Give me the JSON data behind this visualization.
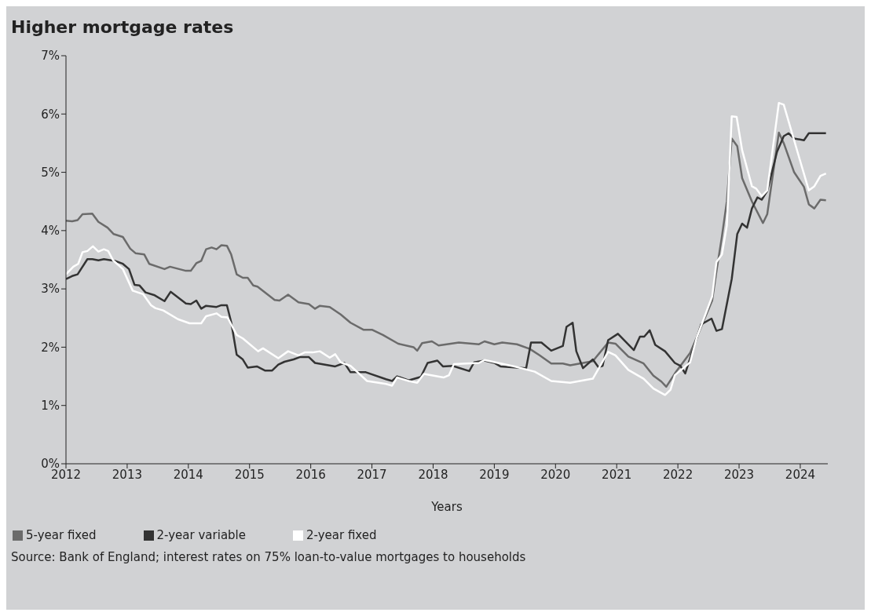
{
  "chart_data": {
    "type": "line",
    "title": "Higher mortgage rates",
    "xlabel": "Years",
    "xlim": [
      2012,
      2024.45
    ],
    "xticks": [
      2012,
      2013,
      2014,
      2015,
      2016,
      2017,
      2018,
      2019,
      2020,
      2021,
      2022,
      2023,
      2024
    ],
    "ylim": [
      0,
      7
    ],
    "yticks": [
      {
        "value": 0,
        "label": "0%"
      },
      {
        "value": 1,
        "label": "1%"
      },
      {
        "value": 2,
        "label": "2%"
      },
      {
        "value": 3,
        "label": "3%"
      },
      {
        "value": 4,
        "label": "4%"
      },
      {
        "value": 5,
        "label": "5%"
      },
      {
        "value": 6,
        "label": "6%"
      },
      {
        "value": 7,
        "label": "7%"
      }
    ],
    "grid": false,
    "legend": "bottom left",
    "marker": "none",
    "line_style": "solid",
    "annotations": [
      "Source: Bank of England; interest rates on 75% loan-to-value mortgages to households"
    ],
    "series": [
      {
        "name": "5-year fixed",
        "color": "#6b6b6b",
        "x": [
          2012.0,
          2012.1,
          2012.19,
          2012.27,
          2012.43,
          2012.53,
          2012.68,
          2012.78,
          2012.93,
          2013.05,
          2013.14,
          2013.28,
          2013.36,
          2013.61,
          2013.7,
          2013.96,
          2014.04,
          2014.13,
          2014.21,
          2014.29,
          2014.38,
          2014.46,
          2014.54,
          2014.63,
          2014.7,
          2014.79,
          2014.89,
          2014.97,
          2015.06,
          2015.13,
          2015.41,
          2015.49,
          2015.63,
          2015.8,
          2015.97,
          2016.07,
          2016.15,
          2016.31,
          2016.49,
          2016.65,
          2016.86,
          2017.0,
          2017.18,
          2017.43,
          2017.68,
          2017.74,
          2017.82,
          2017.98,
          2018.09,
          2018.42,
          2018.75,
          2018.84,
          2019.0,
          2019.13,
          2019.37,
          2019.58,
          2019.74,
          2019.93,
          2020.12,
          2020.24,
          2020.61,
          2020.86,
          2020.98,
          2021.19,
          2021.44,
          2021.6,
          2021.73,
          2021.81,
          2021.97,
          2022.2,
          2022.31,
          2022.56,
          2022.63,
          2022.72,
          2022.8,
          2022.88,
          2022.97,
          2023.05,
          2023.21,
          2023.39,
          2023.46,
          2023.65,
          2023.73,
          2023.9,
          2024.06,
          2024.14,
          2024.23,
          2024.33,
          2024.42
        ],
        "values": [
          4.17,
          4.16,
          4.18,
          4.28,
          4.29,
          4.15,
          4.05,
          3.94,
          3.89,
          3.69,
          3.61,
          3.59,
          3.43,
          3.34,
          3.38,
          3.31,
          3.31,
          3.44,
          3.48,
          3.68,
          3.71,
          3.68,
          3.75,
          3.74,
          3.59,
          3.25,
          3.19,
          3.19,
          3.06,
          3.04,
          2.81,
          2.8,
          2.9,
          2.77,
          2.74,
          2.66,
          2.71,
          2.69,
          2.56,
          2.42,
          2.3,
          2.3,
          2.21,
          2.06,
          2.0,
          1.94,
          2.07,
          2.1,
          2.03,
          2.08,
          2.05,
          2.1,
          2.05,
          2.08,
          2.05,
          1.97,
          1.86,
          1.72,
          1.72,
          1.69,
          1.76,
          2.08,
          2.06,
          1.84,
          1.72,
          1.51,
          1.41,
          1.32,
          1.58,
          1.9,
          2.17,
          2.8,
          3.3,
          3.9,
          4.5,
          5.58,
          5.45,
          4.9,
          4.5,
          4.13,
          4.28,
          5.68,
          5.5,
          5.0,
          4.75,
          4.45,
          4.38,
          4.53,
          4.52
        ]
      },
      {
        "name": "2-year variable",
        "color": "#333333",
        "x": [
          2012.0,
          2012.1,
          2012.19,
          2012.35,
          2012.43,
          2012.53,
          2012.62,
          2012.8,
          2012.93,
          2013.03,
          2013.12,
          2013.2,
          2013.3,
          2013.45,
          2013.61,
          2013.71,
          2013.96,
          2014.04,
          2014.13,
          2014.21,
          2014.29,
          2014.46,
          2014.54,
          2014.63,
          2014.7,
          2014.79,
          2014.89,
          2014.97,
          2015.12,
          2015.25,
          2015.37,
          2015.47,
          2015.57,
          2015.72,
          2015.82,
          2015.97,
          2016.07,
          2016.4,
          2016.55,
          2016.65,
          2016.9,
          2017.23,
          2017.33,
          2017.41,
          2017.6,
          2017.8,
          2017.91,
          2018.07,
          2018.16,
          2018.32,
          2018.59,
          2018.67,
          2018.84,
          2019.0,
          2019.1,
          2019.52,
          2019.6,
          2019.77,
          2019.93,
          2020.12,
          2020.18,
          2020.28,
          2020.34,
          2020.45,
          2020.61,
          2020.7,
          2020.77,
          2020.86,
          2021.02,
          2021.28,
          2021.38,
          2021.45,
          2021.54,
          2021.63,
          2021.79,
          2021.95,
          2022.04,
          2022.12,
          2022.38,
          2022.55,
          2022.63,
          2022.72,
          2022.88,
          2022.97,
          2023.05,
          2023.13,
          2023.21,
          2023.3,
          2023.37,
          2023.46,
          2023.62,
          2023.73,
          2023.81,
          2023.9,
          2024.06,
          2024.14,
          2024.42
        ],
        "values": [
          3.17,
          3.22,
          3.25,
          3.51,
          3.51,
          3.49,
          3.51,
          3.48,
          3.43,
          3.34,
          3.07,
          3.06,
          2.94,
          2.89,
          2.79,
          2.95,
          2.75,
          2.74,
          2.8,
          2.66,
          2.71,
          2.69,
          2.72,
          2.72,
          2.43,
          1.87,
          1.79,
          1.65,
          1.67,
          1.6,
          1.6,
          1.7,
          1.75,
          1.79,
          1.83,
          1.83,
          1.73,
          1.67,
          1.73,
          1.57,
          1.57,
          1.45,
          1.42,
          1.5,
          1.43,
          1.49,
          1.73,
          1.77,
          1.67,
          1.68,
          1.59,
          1.74,
          1.77,
          1.73,
          1.67,
          1.64,
          2.08,
          2.08,
          1.94,
          2.02,
          2.35,
          2.42,
          1.93,
          1.64,
          1.79,
          1.66,
          1.68,
          2.12,
          2.23,
          1.95,
          2.18,
          2.18,
          2.29,
          2.04,
          1.93,
          1.73,
          1.68,
          1.55,
          2.39,
          2.49,
          2.28,
          2.31,
          3.17,
          3.94,
          4.12,
          4.05,
          4.38,
          4.57,
          4.53,
          4.68,
          5.35,
          5.62,
          5.67,
          5.58,
          5.55,
          5.67,
          5.67
        ]
      },
      {
        "name": "2-year fixed",
        "color": "#ffffff",
        "x": [
          2012.0,
          2012.12,
          2012.2,
          2012.27,
          2012.35,
          2012.44,
          2012.53,
          2012.62,
          2012.69,
          2012.77,
          2012.93,
          2013.09,
          2013.26,
          2013.39,
          2013.46,
          2013.59,
          2013.83,
          2014.02,
          2014.21,
          2014.29,
          2014.46,
          2014.54,
          2014.64,
          2014.79,
          2014.89,
          2015.14,
          2015.22,
          2015.47,
          2015.63,
          2015.8,
          2015.9,
          2016.03,
          2016.15,
          2016.31,
          2016.4,
          2016.49,
          2016.65,
          2016.92,
          2017.23,
          2017.33,
          2017.41,
          2017.6,
          2017.74,
          2017.85,
          2018.17,
          2018.26,
          2018.34,
          2018.75,
          2018.84,
          2019.33,
          2019.66,
          2019.93,
          2020.24,
          2020.61,
          2020.86,
          2020.98,
          2021.19,
          2021.44,
          2021.6,
          2021.79,
          2021.88,
          2021.95,
          2022.2,
          2022.31,
          2022.56,
          2022.63,
          2022.72,
          2022.8,
          2022.88,
          2022.96,
          2023.05,
          2023.21,
          2023.28,
          2023.37,
          2023.46,
          2023.65,
          2023.73,
          2023.98,
          2024.14,
          2024.23,
          2024.33,
          2024.42
        ],
        "values": [
          3.25,
          3.38,
          3.43,
          3.63,
          3.65,
          3.73,
          3.64,
          3.68,
          3.65,
          3.49,
          3.34,
          2.97,
          2.91,
          2.72,
          2.67,
          2.63,
          2.48,
          2.41,
          2.41,
          2.53,
          2.58,
          2.52,
          2.51,
          2.21,
          2.15,
          1.93,
          1.98,
          1.81,
          1.93,
          1.86,
          1.91,
          1.91,
          1.93,
          1.82,
          1.88,
          1.74,
          1.68,
          1.42,
          1.37,
          1.34,
          1.48,
          1.42,
          1.39,
          1.54,
          1.48,
          1.52,
          1.71,
          1.73,
          1.78,
          1.67,
          1.58,
          1.42,
          1.39,
          1.46,
          1.92,
          1.86,
          1.61,
          1.46,
          1.29,
          1.18,
          1.27,
          1.52,
          1.74,
          2.17,
          2.87,
          3.46,
          3.59,
          4.09,
          5.96,
          5.95,
          5.38,
          4.76,
          4.72,
          4.59,
          4.69,
          6.19,
          6.16,
          5.26,
          4.69,
          4.76,
          4.94,
          4.98
        ]
      }
    ]
  }
}
